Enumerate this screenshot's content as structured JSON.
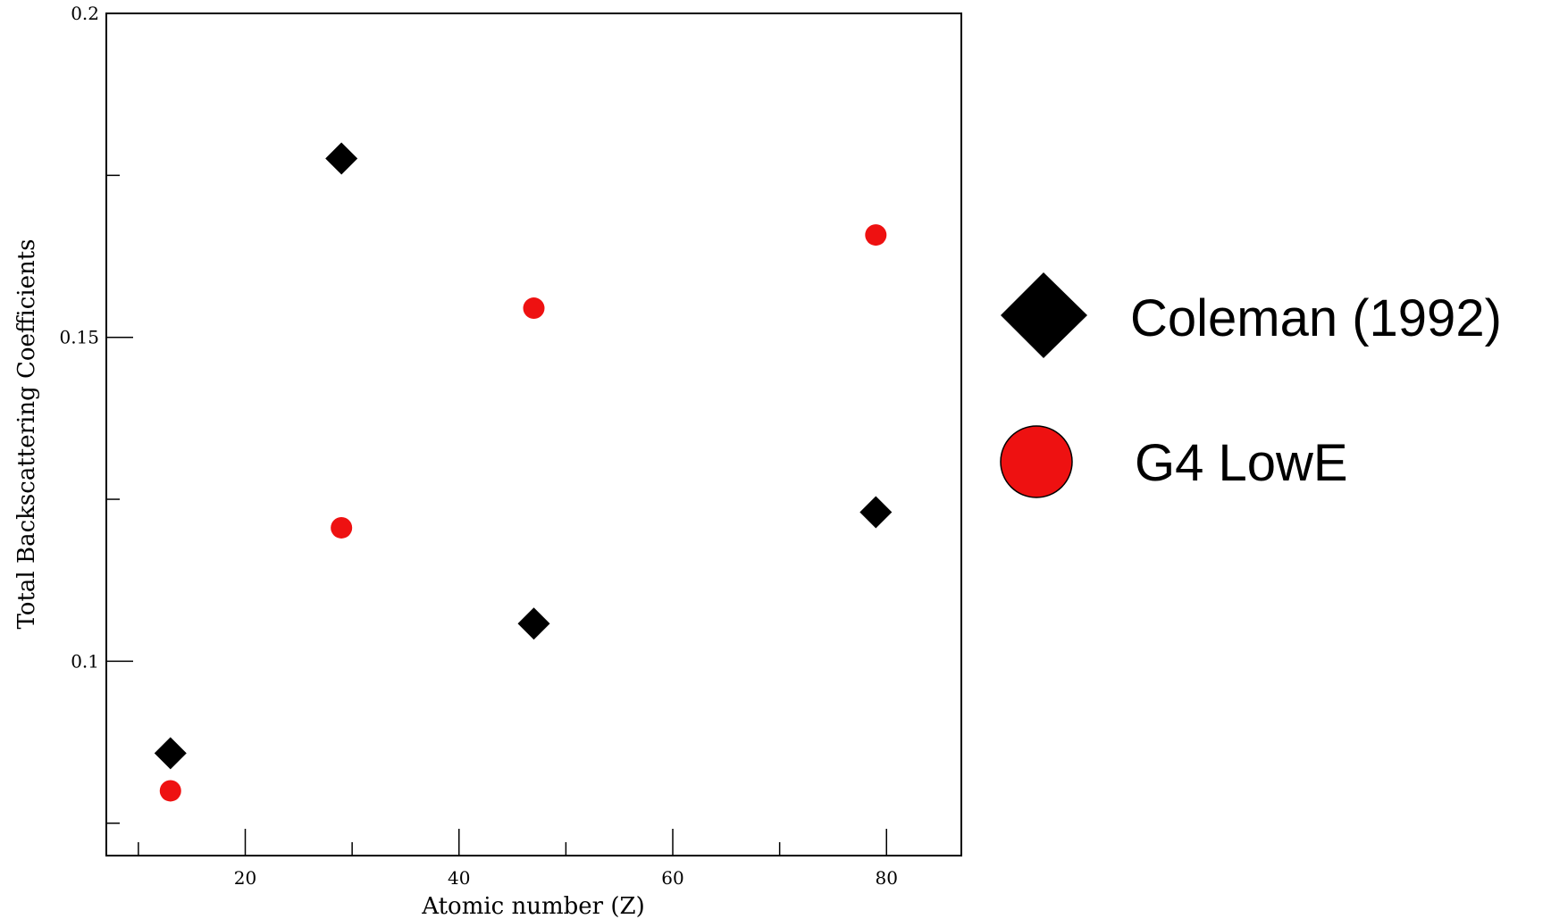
{
  "chart_data": {
    "type": "scatter",
    "title": "",
    "xlabel": "Atomic number (Z)",
    "ylabel": "Total Backscattering Coefficients",
    "xlim": [
      7,
      87
    ],
    "ylim": [
      0.07,
      0.2
    ],
    "x_ticks": [
      {
        "value": 10,
        "label": ""
      },
      {
        "value": 20,
        "label": "20"
      },
      {
        "value": 30,
        "label": ""
      },
      {
        "value": 40,
        "label": "40"
      },
      {
        "value": 50,
        "label": ""
      },
      {
        "value": 60,
        "label": "60"
      },
      {
        "value": 70,
        "label": ""
      },
      {
        "value": 80,
        "label": "80"
      }
    ],
    "y_ticks": [
      {
        "value": 0.075,
        "label": ""
      },
      {
        "value": 0.1,
        "label": "0.1"
      },
      {
        "value": 0.125,
        "label": ""
      },
      {
        "value": 0.15,
        "label": "0.15"
      },
      {
        "value": 0.175,
        "label": ""
      },
      {
        "value": 0.2,
        "label": "0.2"
      }
    ],
    "grid": false,
    "legend_position": "right, outside plot",
    "series": [
      {
        "name": "Coleman (1992)",
        "marker": "diamond",
        "color": "#000000",
        "points": [
          {
            "x": 13,
            "y": 0.0858
          },
          {
            "x": 29,
            "y": 0.1776
          },
          {
            "x": 47,
            "y": 0.1058
          },
          {
            "x": 79,
            "y": 0.123
          }
        ]
      },
      {
        "name": "G4 LowE",
        "marker": "circle",
        "color": "#ee1111",
        "points": [
          {
            "x": 13,
            "y": 0.08
          },
          {
            "x": 29,
            "y": 0.1206
          },
          {
            "x": 47,
            "y": 0.1545
          },
          {
            "x": 79,
            "y": 0.1658
          }
        ]
      }
    ]
  }
}
